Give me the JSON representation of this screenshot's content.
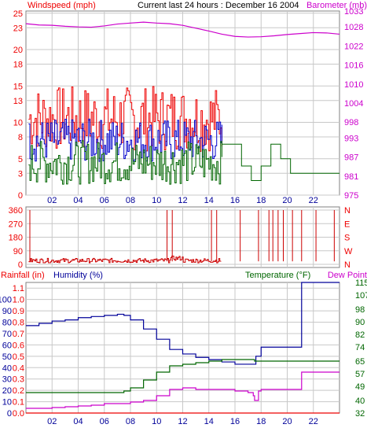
{
  "chart_data": [
    {
      "type": "line",
      "title": "Current last 24 hours : December 16 2004",
      "left_axis_label": "Windspeed (mph)",
      "right_axis_label": "Barometer (mb)",
      "x_ticks": [
        "02",
        "04",
        "06",
        "08",
        "10",
        "12",
        "14",
        "16",
        "18",
        "20",
        "22"
      ],
      "left_ticks": [
        "0",
        "3",
        "5",
        "8",
        "10",
        "13",
        "15",
        "18",
        "20",
        "23",
        "25"
      ],
      "right_ticks": [
        "975",
        "981",
        "987",
        "993",
        "998",
        "1004",
        "1010",
        "1016",
        "1022",
        "1028",
        "1033"
      ],
      "ylim_left": [
        0,
        25.3
      ],
      "ylim_right": [
        975,
        1033
      ],
      "series": [
        {
          "name": "Barometer",
          "color": "#cc00cc",
          "axis": "right",
          "x": [
            0,
            1,
            2,
            3,
            4,
            5,
            6,
            7,
            8,
            9,
            10,
            11,
            12,
            13,
            14,
            15,
            16,
            17,
            18,
            19,
            20,
            21,
            22,
            23,
            24
          ],
          "values": [
            1029,
            1028.6,
            1028.5,
            1028.2,
            1028,
            1027.9,
            1028.3,
            1028.9,
            1029.2,
            1029.5,
            1029.2,
            1029,
            1028.5,
            1027.6,
            1026.7,
            1025.7,
            1025,
            1024.8,
            1024.9,
            1025.2,
            1025.6,
            1025.9,
            1026.2,
            1026.1,
            1025.7
          ]
        }
      ],
      "wind": {
        "gust_color": "#ee0000",
        "avg_color": "#0000cc",
        "min_color": "#006600",
        "gust_mean": 10.5,
        "avg_mean": 7.5,
        "min_mean": 4.5,
        "late_values": [
          7,
          7,
          4,
          2,
          4,
          7,
          5,
          3,
          3,
          3,
          3,
          3
        ]
      }
    },
    {
      "type": "scatter",
      "left_axis_label": "",
      "right_labels": [
        "N",
        "W",
        "S",
        "E",
        "N"
      ],
      "left_ticks": [
        "0",
        "90",
        "180",
        "270",
        "360"
      ],
      "ylim": [
        0,
        360
      ],
      "series": [
        {
          "name": "Wind direction",
          "color": "#cc0000",
          "baseline_mean": 25
        }
      ]
    },
    {
      "type": "line",
      "left_axis_label": "Rainfall (in)",
      "humidity_label": "Humidity (%)",
      "temperature_label": "Temperature (°F)",
      "dewpoint_label": "Dew Point",
      "rain_ticks": [
        "0.0",
        "0.1",
        "0.2",
        "0.3",
        "0.4",
        "0.5",
        "0.6",
        "0.7",
        "0.8",
        "0.9",
        "1.0",
        "1.1"
      ],
      "humidity_ticks": [
        "0",
        "10",
        "20",
        "30",
        "40",
        "50",
        "60",
        "70",
        "80",
        "90",
        "100"
      ],
      "temp_ticks": [
        "32",
        "40",
        "49",
        "57",
        "65",
        "74",
        "82",
        "90",
        "98",
        "107",
        "115"
      ],
      "ylim_rain": [
        0,
        1.15
      ],
      "ylim_temp": [
        32,
        115
      ],
      "series": [
        {
          "name": "Humidity",
          "color": "#000099",
          "axis": "humidity",
          "x": [
            0,
            1,
            2,
            3,
            4,
            5,
            6,
            7,
            7.5,
            8,
            9,
            10,
            11,
            12,
            13,
            14,
            15,
            16,
            17,
            17.4,
            17.6,
            18,
            21,
            21.1,
            22,
            24
          ],
          "values": [
            77,
            79,
            81,
            82,
            84,
            85,
            86,
            87,
            86,
            82,
            74,
            65,
            56,
            52,
            49,
            47,
            45,
            43,
            43,
            43,
            50,
            58,
            58,
            120,
            120,
            120
          ]
        },
        {
          "name": "Temperature",
          "color": "#006600",
          "axis": "temp",
          "x": [
            0,
            1,
            2,
            3,
            4,
            5,
            6,
            7,
            7.5,
            8,
            9,
            10,
            11,
            12,
            13,
            14,
            15,
            16,
            17,
            17.5,
            18,
            20,
            22,
            24
          ],
          "values": [
            45,
            45,
            45,
            45,
            45,
            45,
            45,
            45,
            46,
            48,
            53,
            58,
            62,
            63,
            64,
            65,
            66,
            66,
            66,
            65,
            65,
            65,
            65,
            65
          ]
        },
        {
          "name": "Dew Point",
          "color": "#cc00cc",
          "axis": "temp",
          "x": [
            0,
            1,
            2,
            3,
            4,
            5,
            6,
            7,
            8,
            9,
            10,
            11,
            12,
            13,
            14,
            15,
            16,
            17,
            17.4,
            17.5,
            17.8,
            18,
            21,
            21.1,
            22,
            24
          ],
          "values": [
            35,
            35,
            35.5,
            36,
            36.5,
            37,
            38,
            38,
            39,
            40,
            43,
            47,
            48,
            47,
            47,
            47,
            46,
            45,
            43,
            40,
            46,
            47,
            47,
            58,
            58,
            58
          ]
        },
        {
          "name": "Rainfall",
          "color": "#ee0000",
          "axis": "rain",
          "x": [
            0,
            24
          ],
          "values": [
            0,
            0
          ]
        }
      ]
    }
  ]
}
